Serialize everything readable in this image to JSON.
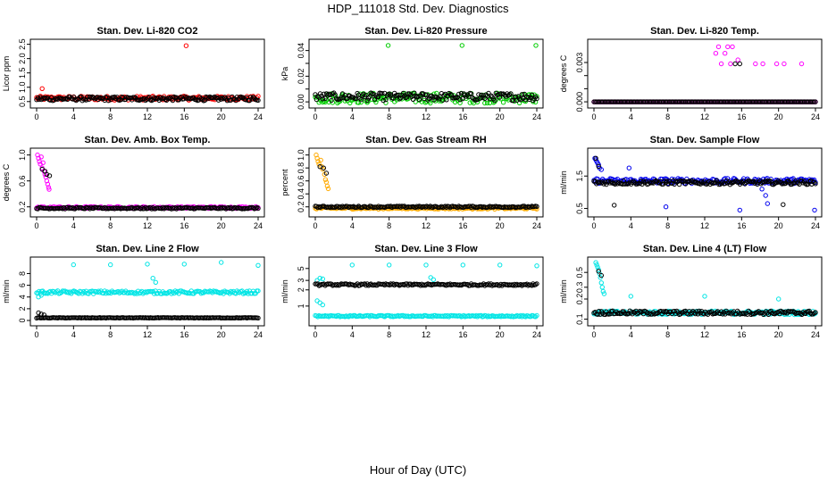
{
  "page": {
    "title": "HDP_111018  Std. Dev. Diagnostics",
    "xlabel": "Hour of Day (UTC)"
  },
  "chart_data": [
    {
      "type": "scatter",
      "title": "Stan. Dev. Li-820 CO2",
      "ylabel": "Licor ppm",
      "color": "#ff0000",
      "xlim": [
        0,
        24
      ],
      "ylim": [
        0.4,
        2.55
      ],
      "xticks": [
        0,
        4,
        8,
        12,
        16,
        20,
        24
      ],
      "yticks": [
        0.5,
        1.0,
        1.5,
        2.0,
        2.5
      ],
      "ytick_labels": [
        "0.5",
        "1.0",
        "1.5",
        "2.0",
        "2.5"
      ],
      "series": [
        {
          "name": "colored",
          "base": 0.62,
          "noise": 0.07,
          "outliers": [
            [
              0.6,
              0.95
            ],
            [
              16.2,
              2.45
            ]
          ]
        },
        {
          "name": "black",
          "base": 0.6,
          "noise": 0.07,
          "outliers": []
        }
      ]
    },
    {
      "type": "scatter",
      "title": "Stan. Dev. Li-820 Pressure",
      "ylabel": "kPa",
      "color": "#00cc00",
      "xlim": [
        0,
        24
      ],
      "ylim": [
        -0.002,
        0.046
      ],
      "xticks": [
        0,
        4,
        8,
        12,
        16,
        20,
        24
      ],
      "yticks": [
        0.0,
        0.01,
        0.02,
        0.03,
        0.04
      ],
      "ytick_labels": [
        "0.00",
        "",
        "0.02",
        "",
        "0.04"
      ],
      "series": [
        {
          "name": "colored",
          "base": 0.003,
          "noise": 0.004,
          "outliers": [
            [
              7.9,
              0.044
            ],
            [
              15.9,
              0.044
            ],
            [
              23.9,
              0.044
            ]
          ]
        },
        {
          "name": "black",
          "base": 0.004,
          "noise": 0.003,
          "outliers": []
        }
      ]
    },
    {
      "type": "scatter",
      "title": "Stan. Dev. Li-820 Temp.",
      "ylabel": "degrees C",
      "color": "#ff00ff",
      "xlim": [
        0,
        24
      ],
      "ylim": [
        -0.0002,
        0.0045
      ],
      "xticks": [
        0,
        4,
        8,
        12,
        16,
        20,
        24
      ],
      "yticks": [
        0.0,
        0.001,
        0.002,
        0.003
      ],
      "ytick_labels": [
        "0.000",
        "",
        "",
        "0.003"
      ],
      "series": [
        {
          "name": "colored",
          "base": 0.0,
          "noise": 0.0,
          "outliers": [
            [
              13.5,
              0.0042
            ],
            [
              14.5,
              0.0042
            ],
            [
              15.0,
              0.0042
            ],
            [
              13.2,
              0.0037
            ],
            [
              14.2,
              0.0037
            ],
            [
              15.6,
              0.0032
            ],
            [
              17.5,
              0.0029
            ],
            [
              18.3,
              0.0029
            ],
            [
              19.8,
              0.0029
            ],
            [
              20.6,
              0.0029
            ],
            [
              22.5,
              0.0029
            ],
            [
              13.8,
              0.0029
            ],
            [
              14.8,
              0.0029
            ]
          ]
        },
        {
          "name": "black",
          "base": 0.0,
          "noise": 0.0,
          "outliers": [
            [
              15.3,
              0.0029
            ],
            [
              15.8,
              0.0029
            ]
          ]
        }
      ]
    },
    {
      "type": "scatter",
      "title": "Stan. Dev. Amb. Box Temp.",
      "ylabel": "degrees C",
      "color": "#ff00ff",
      "xlim": [
        0,
        24
      ],
      "ylim": [
        0.1,
        1.05
      ],
      "xticks": [
        0,
        4,
        8,
        12,
        16,
        20,
        24
      ],
      "yticks": [
        0.2,
        0.6,
        1.0
      ],
      "ytick_labels": [
        "0.2",
        "0.6",
        "1.0"
      ],
      "series": [
        {
          "name": "colored",
          "base": 0.19,
          "noise": 0.015,
          "outliers": [
            [
              0.1,
              1.0
            ],
            [
              0.2,
              0.95
            ],
            [
              0.3,
              0.9
            ],
            [
              0.4,
              0.86
            ],
            [
              0.5,
              0.97
            ],
            [
              0.6,
              0.8
            ],
            [
              0.7,
              0.88
            ],
            [
              0.8,
              0.75
            ],
            [
              0.9,
              0.7
            ],
            [
              1.0,
              0.66
            ],
            [
              1.1,
              0.6
            ],
            [
              1.2,
              0.55
            ],
            [
              1.3,
              0.5
            ],
            [
              1.35,
              0.47
            ]
          ]
        },
        {
          "name": "black",
          "base": 0.18,
          "noise": 0.012,
          "outliers": [
            [
              0.6,
              0.78
            ],
            [
              0.9,
              0.75
            ],
            [
              1.1,
              0.7
            ],
            [
              1.4,
              0.68
            ]
          ]
        }
      ]
    },
    {
      "type": "scatter",
      "title": "Stan. Dev. Gas Stream RH",
      "ylabel": "percent",
      "color": "#ffaa00",
      "xlim": [
        0,
        24
      ],
      "ylim": [
        0.1,
        1.05
      ],
      "xticks": [
        0,
        4,
        8,
        12,
        16,
        20,
        24
      ],
      "yticks": [
        0.2,
        0.4,
        0.6,
        0.8,
        1.0
      ],
      "ytick_labels": [
        "0.2",
        "0.4",
        "0.6",
        "0.8",
        "1.0"
      ],
      "series": [
        {
          "name": "colored",
          "base": 0.18,
          "noise": 0.015,
          "outliers": [
            [
              0.1,
              1.0
            ],
            [
              0.2,
              0.95
            ],
            [
              0.3,
              0.9
            ],
            [
              0.4,
              0.86
            ],
            [
              0.6,
              0.92
            ],
            [
              0.7,
              0.82
            ],
            [
              0.8,
              0.78
            ],
            [
              1.0,
              0.7
            ],
            [
              1.1,
              0.62
            ],
            [
              1.2,
              0.58
            ],
            [
              1.3,
              0.52
            ],
            [
              1.4,
              0.48
            ]
          ]
        },
        {
          "name": "black",
          "base": 0.2,
          "noise": 0.012,
          "outliers": [
            [
              0.5,
              0.82
            ],
            [
              0.9,
              0.8
            ],
            [
              1.2,
              0.72
            ]
          ]
        }
      ]
    },
    {
      "type": "scatter",
      "title": "Stan. Dev. Sample Flow",
      "ylabel": "ml/min",
      "color": "#0000ee",
      "xlim": [
        0,
        24
      ],
      "ylim": [
        0.35,
        2.25
      ],
      "xticks": [
        0,
        4,
        8,
        12,
        16,
        20,
        24
      ],
      "yticks": [
        0.5,
        1.5
      ],
      "ytick_labels": [
        "0.5",
        "1.5"
      ],
      "series": [
        {
          "name": "colored",
          "base": 1.35,
          "noise": 0.08,
          "outliers": [
            [
              0.1,
              2.05
            ],
            [
              0.2,
              2.0
            ],
            [
              0.3,
              1.95
            ],
            [
              0.4,
              1.9
            ],
            [
              0.5,
              1.85
            ],
            [
              0.6,
              1.75
            ],
            [
              0.8,
              1.7
            ],
            [
              3.8,
              1.75
            ],
            [
              7.8,
              0.55
            ],
            [
              15.8,
              0.45
            ],
            [
              18.2,
              1.1
            ],
            [
              18.6,
              0.9
            ],
            [
              18.8,
              0.65
            ],
            [
              23.9,
              0.45
            ]
          ]
        },
        {
          "name": "black",
          "base": 1.3,
          "noise": 0.06,
          "outliers": [
            [
              0.2,
              2.05
            ],
            [
              0.5,
              1.8
            ],
            [
              2.2,
              0.6
            ],
            [
              20.5,
              0.62
            ]
          ]
        }
      ]
    },
    {
      "type": "scatter",
      "title": "Stan. Dev. Line 2 Flow",
      "ylabel": "ml/min",
      "color": "#00e5e5",
      "xlim": [
        0,
        24
      ],
      "ylim": [
        -0.3,
        10.2
      ],
      "xticks": [
        0,
        4,
        8,
        12,
        16,
        20,
        24
      ],
      "yticks": [
        0,
        2,
        4,
        6,
        8
      ],
      "ytick_labels": [
        "0",
        "2",
        "4",
        "6",
        "8"
      ],
      "series": [
        {
          "name": "colored",
          "base": 4.8,
          "noise": 0.25,
          "outliers": [
            [
              4.0,
              9.5
            ],
            [
              8.0,
              9.5
            ],
            [
              12.0,
              9.6
            ],
            [
              16.0,
              9.6
            ],
            [
              20.0,
              9.9
            ],
            [
              24.0,
              9.4
            ],
            [
              12.6,
              7.2
            ],
            [
              12.9,
              6.5
            ],
            [
              0.2,
              4.0
            ],
            [
              0.5,
              4.3
            ],
            [
              0.8,
              4.7
            ]
          ]
        },
        {
          "name": "black",
          "base": 0.45,
          "noise": 0.05,
          "outliers": [
            [
              0.2,
              1.3
            ],
            [
              0.5,
              1.1
            ],
            [
              0.8,
              0.95
            ]
          ]
        }
      ]
    },
    {
      "type": "scatter",
      "title": "Stan. Dev. Line 3 Flow",
      "ylabel": "ml/min",
      "color": "#00e5e5",
      "xlim": [
        0,
        24
      ],
      "ylim": [
        0.5,
        7
      ],
      "log": true,
      "xticks": [
        0,
        4,
        8,
        12,
        16,
        20,
        24
      ],
      "yticks": [
        1,
        2,
        3,
        5
      ],
      "ytick_labels": [
        "1",
        "2",
        "3",
        "5"
      ],
      "series": [
        {
          "name": "colored",
          "base": 0.65,
          "noise": 0.02,
          "outliers": [
            [
              4.0,
              5.8
            ],
            [
              8.0,
              5.8
            ],
            [
              12.0,
              5.8
            ],
            [
              16.0,
              5.8
            ],
            [
              20.0,
              5.8
            ],
            [
              24.0,
              5.6
            ],
            [
              0.2,
              1.25
            ],
            [
              0.5,
              1.15
            ],
            [
              0.8,
              1.05
            ],
            [
              0.2,
              3.0
            ],
            [
              0.5,
              3.3
            ],
            [
              0.8,
              3.2
            ],
            [
              12.5,
              3.4
            ],
            [
              12.8,
              3.1
            ]
          ]
        },
        {
          "name": "black",
          "base": 2.5,
          "noise": 0.1,
          "outliers": []
        }
      ]
    },
    {
      "type": "scatter",
      "title": "Stan. Dev. Line 4 (LT) Flow",
      "ylabel": "ml/min",
      "color": "#00e5e5",
      "xlim": [
        0,
        24
      ],
      "ylim": [
        0.09,
        0.75
      ],
      "log": true,
      "xticks": [
        0,
        4,
        8,
        12,
        16,
        20,
        24
      ],
      "yticks": [
        0.1,
        0.2,
        0.3,
        0.5
      ],
      "ytick_labels": [
        "0.1",
        "0.2",
        "0.3",
        "0.5"
      ],
      "series": [
        {
          "name": "colored",
          "base": 0.125,
          "noise": 0.008,
          "outliers": [
            [
              0.2,
              0.7
            ],
            [
              0.3,
              0.65
            ],
            [
              0.4,
              0.6
            ],
            [
              0.5,
              0.55
            ],
            [
              0.6,
              0.48
            ],
            [
              0.7,
              0.42
            ],
            [
              0.8,
              0.35
            ],
            [
              0.9,
              0.3
            ],
            [
              1.0,
              0.26
            ],
            [
              1.1,
              0.24
            ],
            [
              4.0,
              0.22
            ],
            [
              12.0,
              0.22
            ],
            [
              20.0,
              0.2
            ]
          ]
        },
        {
          "name": "black",
          "base": 0.125,
          "noise": 0.008,
          "outliers": [
            [
              0.5,
              0.52
            ],
            [
              0.8,
              0.45
            ]
          ]
        }
      ]
    }
  ]
}
